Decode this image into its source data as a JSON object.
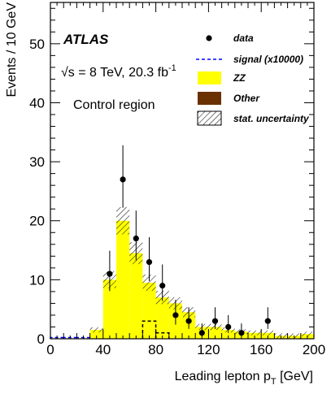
{
  "chart_data": {
    "type": "bar",
    "title": "",
    "xlabel": "Leading lepton p",
    "xlabel_sub": "T",
    "xlabel_unit": "[GeV]",
    "ylabel": "Events / 10 GeV",
    "xlim": [
      0,
      200
    ],
    "ylim": [
      0,
      57
    ],
    "xticks": [
      "0",
      "40",
      "80",
      "120",
      "160",
      "200"
    ],
    "yticks": [
      "0",
      "10",
      "20",
      "30",
      "40",
      "50"
    ],
    "bin_width": 10,
    "annotations": {
      "experiment": "ATLAS",
      "energy": "√s = 8 TeV, 20.3 fb",
      "energy_sup": "-1",
      "region": "Control region"
    },
    "legend": {
      "position": "top-right",
      "entries": [
        {
          "label": "data",
          "style": "marker"
        },
        {
          "label": "signal (x10000)",
          "style": "dashed-line"
        },
        {
          "label": "ZZ",
          "style": "fill"
        },
        {
          "label": "Other",
          "style": "fill"
        },
        {
          "label": "stat. uncertainty",
          "style": "hatch"
        }
      ]
    },
    "colors": {
      "zz": "#ffff00",
      "other": "#6b3000",
      "signal": "#0000ff",
      "data": "#000000"
    },
    "series": [
      {
        "name": "ZZ",
        "bin_low_edges": [
          0,
          10,
          20,
          30,
          40,
          50,
          60,
          70,
          80,
          90,
          100,
          110,
          120,
          130,
          140,
          150,
          160,
          170,
          180,
          190
        ],
        "values": [
          0,
          0,
          0,
          1.5,
          10,
          20,
          14.5,
          9.5,
          7,
          6,
          4.5,
          2,
          2,
          1.5,
          1.2,
          1,
          1,
          0.5,
          0.5,
          0.8
        ]
      },
      {
        "name": "signal (x10000)",
        "bin_low_edges": [
          0,
          10,
          20,
          30,
          40,
          50,
          60,
          70,
          80,
          90,
          100,
          110,
          120,
          130,
          140,
          150,
          160,
          170,
          180,
          190
        ],
        "values": [
          0.2,
          0.2,
          0.2,
          0,
          0,
          0,
          0,
          3,
          1,
          0,
          0,
          0,
          0,
          0,
          0,
          0,
          0,
          0,
          0,
          0
        ]
      },
      {
        "name": "data",
        "x": [
          45,
          55,
          65,
          75,
          85,
          95,
          105,
          115,
          125,
          135,
          145,
          165
        ],
        "y": [
          11,
          27,
          17,
          13,
          9,
          4,
          3,
          1,
          3,
          2,
          1,
          3
        ]
      }
    ]
  }
}
